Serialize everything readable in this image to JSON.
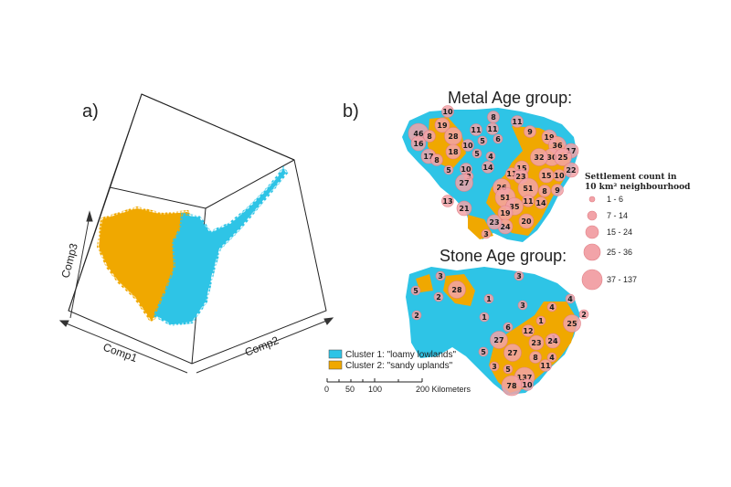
{
  "panel_a": {
    "label": "a)",
    "axes": {
      "x": "Comp1",
      "y": "Comp3",
      "z": "Comp2"
    }
  },
  "panel_b": {
    "label": "b)",
    "metal_title": "Metal Age group:",
    "stone_title": "Stone Age group:",
    "size_legend": {
      "title_line1": "Settlement count in",
      "title_line2": "10 km² neighbourhood",
      "classes": [
        "1 - 6",
        "7 - 14",
        "15 - 24",
        "25 - 36",
        "37 - 137"
      ]
    },
    "cluster_legend": [
      {
        "label": "Cluster 1: \"loamy lowlands\"",
        "color": "#2ec4e6"
      },
      {
        "label": "Cluster 2: \"sandy uplands\"",
        "color": "#f0a800"
      }
    ],
    "scale_bar": {
      "ticks": [
        "0",
        "50",
        "100",
        "200 Kilometers"
      ]
    },
    "metal_counts": [
      "10",
      "8",
      "11",
      "46",
      "16",
      "19",
      "28",
      "11",
      "11",
      "6",
      "9",
      "19",
      "8",
      "5",
      "36",
      "17",
      "17",
      "18",
      "10",
      "8",
      "5",
      "4",
      "15",
      "30",
      "25",
      "22",
      "10",
      "5",
      "3",
      "14",
      "11",
      "32",
      "15",
      "10",
      "9",
      "27",
      "26",
      "23",
      "51",
      "13",
      "21",
      "51",
      "11",
      "14",
      "8",
      "35",
      "19",
      "24",
      "23",
      "20",
      "3"
    ],
    "stone_counts": [
      "3",
      "3",
      "5",
      "28",
      "2",
      "1",
      "4",
      "3",
      "4",
      "2",
      "1",
      "25",
      "2",
      "1",
      "6",
      "12",
      "27",
      "23",
      "1",
      "24",
      "5",
      "27",
      "8",
      "4",
      "11",
      "3",
      "5",
      "137",
      "78",
      "10"
    ]
  },
  "colors": {
    "cluster1": "#2ec4e6",
    "cluster2": "#f0a800",
    "circle": "#f2a3a8"
  }
}
